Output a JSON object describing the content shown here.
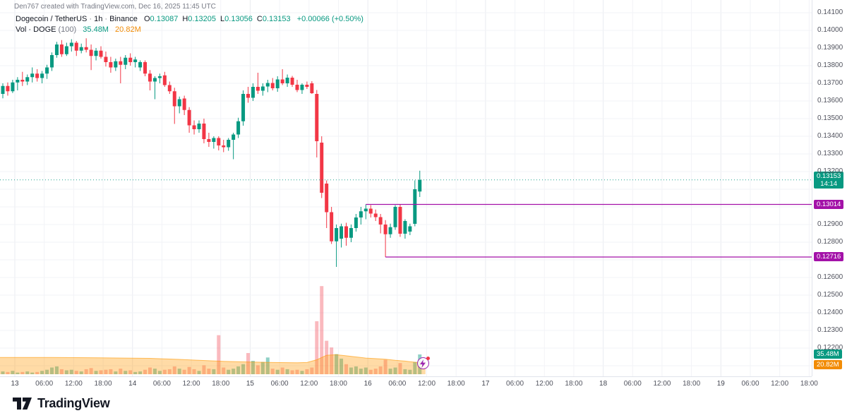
{
  "attribution": "Den767 created with TradingView.com, Dec 16, 2025 11:45 UTC",
  "legend": {
    "title": "Dogecoin / TetherUS",
    "separator": "·",
    "interval": "1h",
    "exchange": "Binance",
    "ohlc": {
      "O": "0.13087",
      "H": "0.13205",
      "L": "0.13056",
      "C": "0.13153"
    },
    "change": "+0.00066 (+0.50%)",
    "volume_label": "Vol · DOGE",
    "volume_param": "(100)",
    "volume_value": "35.48M",
    "volume_ma_value": "20.82M"
  },
  "price_axis": {
    "labels": [
      "0.14100",
      "0.14000",
      "0.13900",
      "0.13800",
      "0.13700",
      "0.13600",
      "0.13500",
      "0.13400",
      "0.13300",
      "0.13200",
      "0.12900",
      "0.12800",
      "0.12600",
      "0.12500",
      "0.12400",
      "0.12300",
      "0.12200"
    ]
  },
  "time_axis": {
    "labels": [
      "13",
      "06:00",
      "12:00",
      "18:00",
      "14",
      "06:00",
      "12:00",
      "18:00",
      "15",
      "06:00",
      "12:00",
      "18:00",
      "16",
      "06:00",
      "12:00",
      "18:00",
      "17",
      "06:00",
      "12:00",
      "18:00",
      "18",
      "06:00",
      "12:00",
      "18:00",
      "19",
      "06:00",
      "12:00",
      "18:00"
    ]
  },
  "badges": {
    "current_price": "0.13153",
    "countdown": "14:14",
    "level1": "0.13014",
    "level2": "0.12716",
    "volume": "35.48M",
    "volume_ma": "20.82M"
  },
  "colors": {
    "up": "#089981",
    "down": "#f23645",
    "volume_up": "rgba(8,153,129,0.45)",
    "volume_down": "rgba(242,54,69,0.35)",
    "volume_ma_fill": "rgba(255,152,0,0.35)",
    "volume_ma_line": "rgba(255,152,0,0.6)",
    "level_line": "#a311a8",
    "current_price_line": "#089981",
    "badge_current_bg": "#089981",
    "badge_level_bg": "#a311a8",
    "badge_volume_bg": "#089981",
    "badge_volume_ma_bg": "#f28c06",
    "grid": "#f2f3f7",
    "grid_day": "#e9ebf0"
  },
  "footer": {
    "brand": "TradingView"
  },
  "chart_data": {
    "type": "candlestick+volume",
    "symbol": "Dogecoin / TetherUS",
    "exchange": "Binance",
    "interval": "1h",
    "price_range": [
      0.122,
      0.141
    ],
    "grid_step": 0.001,
    "current_bar": {
      "open": 0.13087,
      "high": 0.13205,
      "low": 0.13056,
      "close": 0.13153,
      "volume_m": 35.48,
      "countdown": "14:14"
    },
    "volume_ma_current_m": 20.82,
    "levels": [
      {
        "price": 0.13014,
        "from_candle": 74
      },
      {
        "price": 0.12716,
        "from_candle": 78
      }
    ],
    "candles": [
      [
        0.1364,
        0.137,
        0.13615,
        0.13685,
        5
      ],
      [
        0.13685,
        0.13705,
        0.1363,
        0.13655,
        4
      ],
      [
        0.13655,
        0.1372,
        0.13645,
        0.13705,
        6
      ],
      [
        0.13705,
        0.13735,
        0.1366,
        0.1372,
        3
      ],
      [
        0.1372,
        0.13765,
        0.13685,
        0.1371,
        4
      ],
      [
        0.1371,
        0.1375,
        0.1369,
        0.13735,
        5
      ],
      [
        0.13735,
        0.1379,
        0.13705,
        0.13755,
        3
      ],
      [
        0.13755,
        0.1378,
        0.1371,
        0.1373,
        4
      ],
      [
        0.1373,
        0.1377,
        0.137,
        0.13755,
        6
      ],
      [
        0.13755,
        0.13805,
        0.13725,
        0.1379,
        8
      ],
      [
        0.1379,
        0.13875,
        0.1377,
        0.1386,
        12
      ],
      [
        0.1386,
        0.13935,
        0.13845,
        0.1392,
        14
      ],
      [
        0.1392,
        0.13945,
        0.1385,
        0.13865,
        9
      ],
      [
        0.13865,
        0.1393,
        0.13855,
        0.1391,
        7
      ],
      [
        0.1391,
        0.1395,
        0.1388,
        0.1393,
        8
      ],
      [
        0.1393,
        0.1394,
        0.13855,
        0.13885,
        6
      ],
      [
        0.13885,
        0.13925,
        0.1387,
        0.13905,
        5
      ],
      [
        0.13905,
        0.13955,
        0.13875,
        0.1389,
        9
      ],
      [
        0.1389,
        0.1392,
        0.13775,
        0.13855,
        11
      ],
      [
        0.13855,
        0.139,
        0.1383,
        0.13885,
        6
      ],
      [
        0.13885,
        0.1391,
        0.1384,
        0.1385,
        7
      ],
      [
        0.1385,
        0.1388,
        0.13795,
        0.1382,
        8
      ],
      [
        0.1382,
        0.1385,
        0.1376,
        0.1379,
        9
      ],
      [
        0.1379,
        0.1384,
        0.1377,
        0.13825,
        5
      ],
      [
        0.13825,
        0.1385,
        0.137,
        0.13805,
        10
      ],
      [
        0.13805,
        0.1386,
        0.1378,
        0.13845,
        6
      ],
      [
        0.13845,
        0.1387,
        0.138,
        0.1382,
        7
      ],
      [
        0.1382,
        0.1385,
        0.1379,
        0.13835,
        4
      ],
      [
        0.1379,
        0.1383,
        0.1377,
        0.1382,
        5
      ],
      [
        0.1382,
        0.1383,
        0.1374,
        0.13755,
        8
      ],
      [
        0.13755,
        0.13775,
        0.1366,
        0.1371,
        12
      ],
      [
        0.1371,
        0.1374,
        0.1361,
        0.1373,
        10
      ],
      [
        0.1373,
        0.13755,
        0.137,
        0.1374,
        6
      ],
      [
        0.13745,
        0.13765,
        0.1368,
        0.1369,
        8
      ],
      [
        0.1369,
        0.1371,
        0.1364,
        0.13655,
        9
      ],
      [
        0.13655,
        0.13675,
        0.1347,
        0.1357,
        14
      ],
      [
        0.1357,
        0.13625,
        0.1353,
        0.1361,
        10
      ],
      [
        0.13614,
        0.1363,
        0.1352,
        0.13549,
        8
      ],
      [
        0.13549,
        0.13565,
        0.1342,
        0.13462,
        13
      ],
      [
        0.13462,
        0.1349,
        0.1341,
        0.1344,
        9
      ],
      [
        0.1344,
        0.1349,
        0.1342,
        0.13472,
        6
      ],
      [
        0.13472,
        0.135,
        0.1336,
        0.13384,
        16
      ],
      [
        0.13384,
        0.1342,
        0.1334,
        0.13368,
        10
      ],
      [
        0.13368,
        0.134,
        0.1333,
        0.1339,
        9
      ],
      [
        0.1339,
        0.134,
        0.1332,
        0.13348,
        70
      ],
      [
        0.13348,
        0.1338,
        0.1331,
        0.13338,
        12
      ],
      [
        0.13338,
        0.1339,
        0.13318,
        0.1338,
        8
      ],
      [
        0.1338,
        0.1342,
        0.1327,
        0.1341,
        10
      ],
      [
        0.1341,
        0.13505,
        0.1339,
        0.13485,
        14
      ],
      [
        0.13485,
        0.1366,
        0.1346,
        0.1364,
        18
      ],
      [
        0.1364,
        0.1368,
        0.1359,
        0.13618,
        38
      ],
      [
        0.13618,
        0.137,
        0.136,
        0.1368,
        24
      ],
      [
        0.1368,
        0.1376,
        0.1364,
        0.13658,
        16
      ],
      [
        0.13658,
        0.137,
        0.1363,
        0.13682,
        22
      ],
      [
        0.13682,
        0.1372,
        0.1365,
        0.13702,
        30
      ],
      [
        0.13702,
        0.1373,
        0.1366,
        0.13672,
        10
      ],
      [
        0.13672,
        0.1374,
        0.13652,
        0.13722,
        8
      ],
      [
        0.13722,
        0.1378,
        0.1369,
        0.137,
        12
      ],
      [
        0.137,
        0.1375,
        0.1368,
        0.13732,
        9
      ],
      [
        0.13732,
        0.13742,
        0.1368,
        0.13692,
        7
      ],
      [
        0.13692,
        0.1372,
        0.1365,
        0.13662,
        8
      ],
      [
        0.13662,
        0.137,
        0.1364,
        0.13692,
        6
      ],
      [
        0.13692,
        0.1371,
        0.13668,
        0.1368,
        9
      ],
      [
        0.137,
        0.13712,
        0.1364,
        0.13644,
        12
      ],
      [
        0.1364,
        0.13662,
        0.1328,
        0.13372,
        95
      ],
      [
        0.13364,
        0.134,
        0.1305,
        0.1308,
        158
      ],
      [
        0.13132,
        0.1315,
        0.1288,
        0.1297,
        60
      ],
      [
        0.1297,
        0.13,
        0.1279,
        0.12805,
        48
      ],
      [
        0.12805,
        0.129,
        0.1266,
        0.1288,
        36
      ],
      [
        0.1282,
        0.12905,
        0.1277,
        0.1289,
        28
      ],
      [
        0.1289,
        0.1291,
        0.1278,
        0.12825,
        18
      ],
      [
        0.12825,
        0.129,
        0.128,
        0.1288,
        12
      ],
      [
        0.1288,
        0.1296,
        0.1286,
        0.1294,
        14
      ],
      [
        0.1294,
        0.13,
        0.129,
        0.12975,
        10
      ],
      [
        0.12975,
        0.13014,
        0.1293,
        0.1299,
        12
      ],
      [
        0.1299,
        0.1301,
        0.1294,
        0.12962,
        8
      ],
      [
        0.12962,
        0.12985,
        0.1292,
        0.12942,
        10
      ],
      [
        0.12942,
        0.1296,
        0.1285,
        0.129,
        14
      ],
      [
        0.129,
        0.12925,
        0.12716,
        0.12845,
        26
      ],
      [
        0.12845,
        0.12905,
        0.12825,
        0.12885,
        10
      ],
      [
        0.12885,
        0.1301,
        0.1287,
        0.13,
        12
      ],
      [
        0.13,
        0.13012,
        0.1283,
        0.12848,
        20
      ],
      [
        0.12848,
        0.1293,
        0.1282,
        0.1292,
        9
      ],
      [
        0.1286,
        0.12905,
        0.1284,
        0.1289,
        8
      ],
      [
        0.12904,
        0.1315,
        0.1289,
        0.131,
        22
      ],
      [
        0.13087,
        0.13205,
        0.13056,
        0.13153,
        35.48
      ]
    ],
    "volume_ma_m": [
      [
        0,
        30
      ],
      [
        10,
        30
      ],
      [
        20,
        29.5
      ],
      [
        30,
        28.5
      ],
      [
        35,
        27
      ],
      [
        40,
        25
      ],
      [
        45,
        23
      ],
      [
        50,
        22
      ],
      [
        55,
        21
      ],
      [
        60,
        20.5
      ],
      [
        62,
        21
      ],
      [
        64,
        26
      ],
      [
        66,
        34
      ],
      [
        68,
        35
      ],
      [
        70,
        33
      ],
      [
        72,
        31
      ],
      [
        74,
        29
      ],
      [
        76,
        28
      ],
      [
        78,
        27
      ],
      [
        80,
        25
      ],
      [
        82,
        23.5
      ],
      [
        84,
        21.5
      ],
      [
        85,
        20.82
      ]
    ]
  }
}
